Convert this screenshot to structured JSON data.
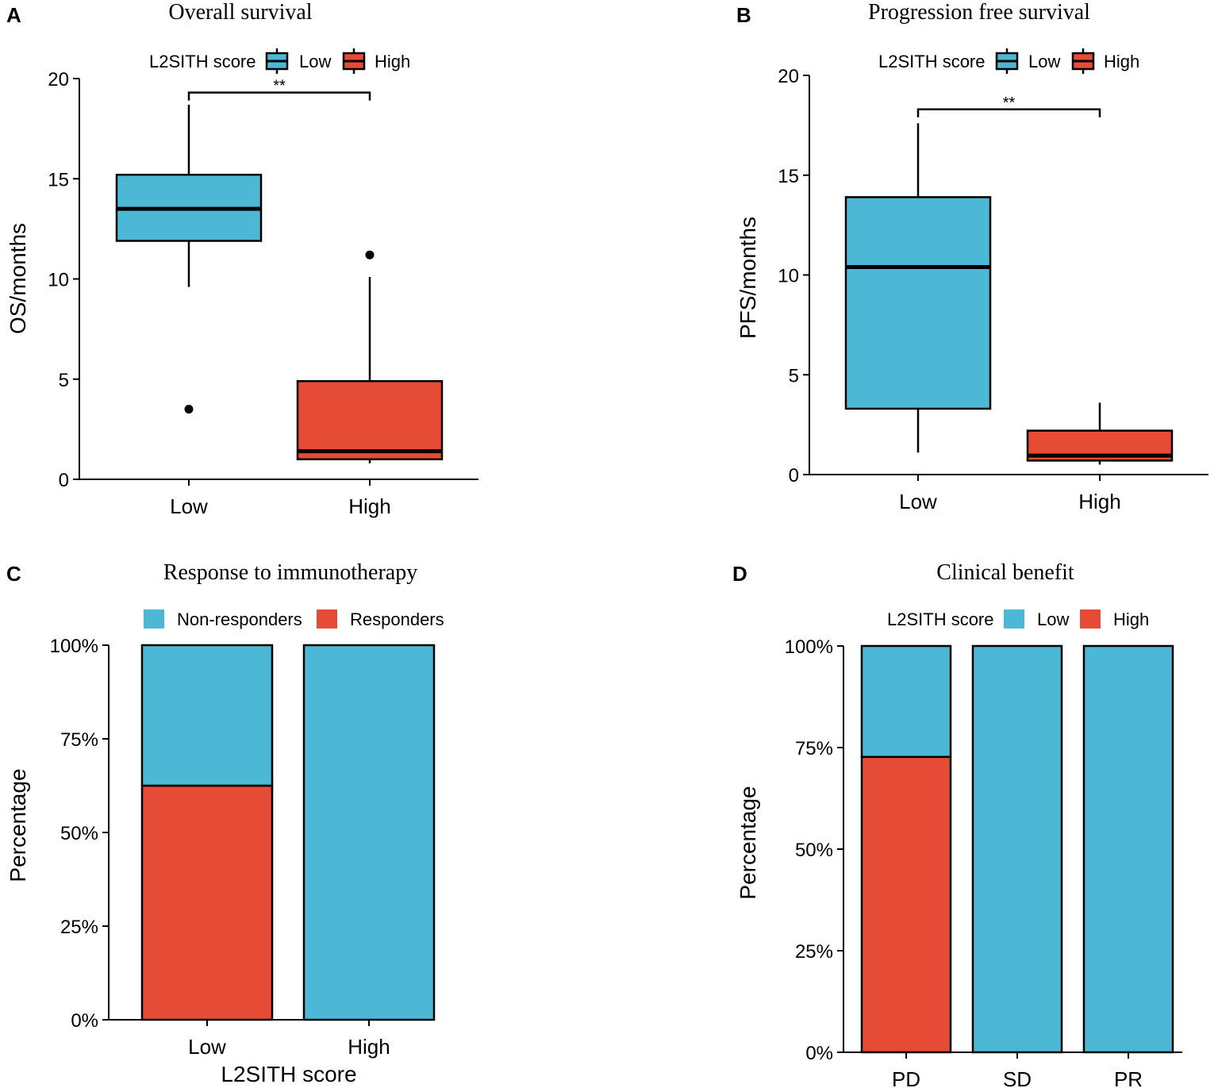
{
  "chart_data": [
    {
      "panel": "A",
      "type": "box",
      "title": "Overall survival",
      "ylabel": "OS/months",
      "xlabel": "",
      "ylim": [
        0,
        20
      ],
      "yticks": [
        0,
        5,
        10,
        15,
        20
      ],
      "legend": {
        "title": "L2SITH score",
        "entries": [
          "Low",
          "High"
        ],
        "placement": "top"
      },
      "categories": [
        "Low",
        "High"
      ],
      "boxes": [
        {
          "group": "Low",
          "color": "#4DB8D5",
          "q1": 11.9,
          "median": 13.5,
          "q3": 15.2,
          "whisker_low": 9.6,
          "whisker_high": 18.7,
          "outliers": [
            3.5
          ]
        },
        {
          "group": "High",
          "color": "#E64B35",
          "q1": 1.0,
          "median": 1.4,
          "q3": 4.9,
          "whisker_low": 0.8,
          "whisker_high": 10.1,
          "outliers": [
            11.2
          ]
        }
      ],
      "significance": {
        "between": [
          "Low",
          "High"
        ],
        "label": "**",
        "y": 19.3
      }
    },
    {
      "panel": "B",
      "type": "box",
      "title": "Progression free survival",
      "ylabel": "PFS/months",
      "xlabel": "",
      "ylim": [
        0,
        20
      ],
      "yticks": [
        0,
        5,
        10,
        15,
        20
      ],
      "legend": {
        "title": "L2SITH score",
        "entries": [
          "Low",
          "High"
        ],
        "placement": "top"
      },
      "categories": [
        "Low",
        "High"
      ],
      "boxes": [
        {
          "group": "Low",
          "color": "#4DB8D5",
          "q1": 3.3,
          "median": 10.4,
          "q3": 13.9,
          "whisker_low": 1.1,
          "whisker_high": 17.6,
          "outliers": []
        },
        {
          "group": "High",
          "color": "#E64B35",
          "q1": 0.7,
          "median": 0.95,
          "q3": 2.2,
          "whisker_low": 0.5,
          "whisker_high": 3.6,
          "outliers": []
        }
      ],
      "significance": {
        "between": [
          "Low",
          "High"
        ],
        "label": "**",
        "y": 18.3
      }
    },
    {
      "panel": "C",
      "type": "bar",
      "stacked": true,
      "title": "Response to immunotherapy",
      "ylabel": "Percentage",
      "xlabel": "L2SITH score",
      "ylim": [
        0,
        100
      ],
      "yticks": [
        "0%",
        "25%",
        "50%",
        "75%",
        "100%"
      ],
      "legend": {
        "title": "",
        "entries": [
          "Non-responders",
          "Responders"
        ],
        "placement": "top"
      },
      "categories": [
        "Low",
        "High"
      ],
      "series": [
        {
          "name": "Responders",
          "color": "#E64B35",
          "values": [
            62.5,
            0
          ]
        },
        {
          "name": "Non-responders",
          "color": "#4DB8D5",
          "values": [
            37.5,
            100
          ]
        }
      ]
    },
    {
      "panel": "D",
      "type": "bar",
      "stacked": true,
      "title": "Clinical benefit",
      "ylabel": "Percentage",
      "xlabel": "",
      "ylim": [
        0,
        100
      ],
      "yticks": [
        "0%",
        "25%",
        "50%",
        "75%",
        "100%"
      ],
      "legend": {
        "title": "L2SITH score",
        "entries": [
          "Low",
          "High"
        ],
        "placement": "top"
      },
      "categories": [
        "PD",
        "SD",
        "PR"
      ],
      "series": [
        {
          "name": "High",
          "color": "#E64B35",
          "values": [
            72.7,
            0,
            0
          ]
        },
        {
          "name": "Low",
          "color": "#4DB8D5",
          "values": [
            27.3,
            100,
            100
          ]
        }
      ]
    }
  ]
}
